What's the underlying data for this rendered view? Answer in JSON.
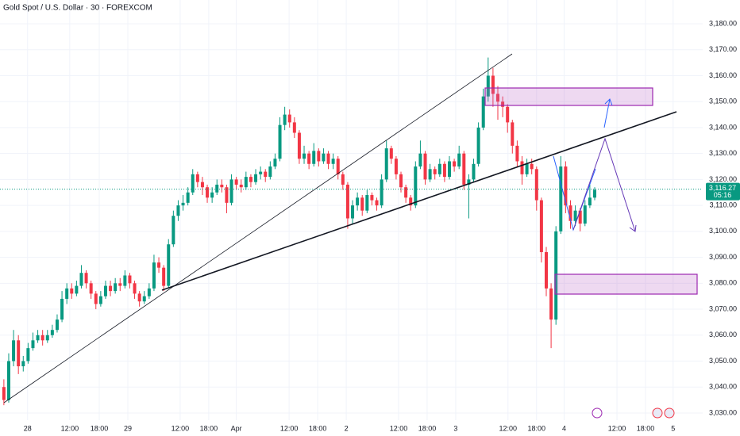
{
  "chart_data": {
    "type": "candlestick",
    "title": "Gold Spot / U.S. Dollar · 30 · FOREXCOM",
    "up_color": "#089981",
    "down_color": "#f23645",
    "grid": true,
    "xlim": [
      -0.8,
      144.3
    ],
    "ylim": [
      3027.24,
      3189.17
    ],
    "xticks": [
      {
        "value": 4.9,
        "label": "28"
      },
      {
        "value": 13.6,
        "label": "12:00"
      },
      {
        "value": 19.7,
        "label": "18:00"
      },
      {
        "value": 25.6,
        "label": "29"
      },
      {
        "value": 36.4,
        "label": "12:00"
      },
      {
        "value": 42.3,
        "label": "18:00"
      },
      {
        "value": 48,
        "label": "Apr"
      },
      {
        "value": 58.9,
        "label": "12:00"
      },
      {
        "value": 64.8,
        "label": "18:00"
      },
      {
        "value": 70.7,
        "label": "2"
      },
      {
        "value": 81.5,
        "label": "12:00"
      },
      {
        "value": 87.4,
        "label": "18:00"
      },
      {
        "value": 93.3,
        "label": "3"
      },
      {
        "value": 104.1,
        "label": "12:00"
      },
      {
        "value": 110,
        "label": "18:00"
      },
      {
        "value": 115.7,
        "label": "4"
      },
      {
        "value": 126.6,
        "label": "12:00"
      },
      {
        "value": 132.5,
        "label": "18:00"
      },
      {
        "value": 138.2,
        "label": "5"
      }
    ],
    "yticks": [
      {
        "value": 3030,
        "label": "3,030.00"
      },
      {
        "value": 3040,
        "label": "3,040.00"
      },
      {
        "value": 3050,
        "label": "3,050.00"
      },
      {
        "value": 3060,
        "label": "3,060.00"
      },
      {
        "value": 3070,
        "label": "3,070.00"
      },
      {
        "value": 3080,
        "label": "3,080.00"
      },
      {
        "value": 3090,
        "label": "3,090.00"
      },
      {
        "value": 3100,
        "label": "3,100.00"
      },
      {
        "value": 3110,
        "label": "3,110.00"
      },
      {
        "value": 3120,
        "label": "3,120.00"
      },
      {
        "value": 3130,
        "label": "3,130.00"
      },
      {
        "value": 3140,
        "label": "3,140.00"
      },
      {
        "value": 3150,
        "label": "3,150.00"
      },
      {
        "value": 3160,
        "label": "3,160.00"
      },
      {
        "value": 3170,
        "label": "3,170.00"
      },
      {
        "value": 3180,
        "label": "3,180.00"
      }
    ],
    "last_price": {
      "value": 3116.27,
      "label": "3,116.27"
    },
    "countdown": "05:16",
    "open": [
      3040,
      3035,
      3050,
      3058,
      3048,
      3050,
      3055,
      3058,
      3060,
      3058,
      3060,
      3062,
      3066,
      3074,
      3078,
      3076,
      3079,
      3084,
      3080,
      3076,
      3072,
      3075,
      3079,
      3077,
      3080,
      3079,
      3083,
      3080,
      3076,
      3073,
      3075,
      3078,
      3088,
      3086,
      3079,
      3095,
      3106,
      3110,
      3111,
      3115,
      3122,
      3119,
      3117,
      3113,
      3115,
      3118,
      3117,
      3111,
      3120,
      3118,
      3117,
      3121,
      3119,
      3122,
      3123,
      3121,
      3125,
      3128,
      3141,
      3145,
      3142,
      3138,
      3128,
      3130,
      3126,
      3131,
      3127,
      3130,
      3126,
      3128,
      3122,
      3118,
      3105,
      3110,
      3113,
      3108,
      3114,
      3112,
      3110,
      3120,
      3132,
      3128,
      3122,
      3117,
      3113,
      3110,
      3125,
      3130,
      3120,
      3124,
      3122,
      3126,
      3121,
      3127,
      3125,
      3130,
      3118,
      3120,
      3126,
      3140,
      3152,
      3160,
      3153,
      3150,
      3148,
      3142,
      3133,
      3127,
      3122,
      3126,
      3124,
      3112,
      3092,
      3078,
      3066,
      3100,
      3125,
      3110,
      3104,
      3108,
      3103,
      3110,
      3113
    ],
    "high": [
      3043,
      3053,
      3062,
      3060,
      3052,
      3057,
      3061,
      3062,
      3062,
      3062,
      3064,
      3068,
      3077,
      3080,
      3080,
      3081,
      3087,
      3085,
      3081,
      3077,
      3077,
      3081,
      3081,
      3082,
      3082,
      3085,
      3084,
      3081,
      3077,
      3077,
      3080,
      3091,
      3090,
      3087,
      3097,
      3108,
      3112,
      3114,
      3117,
      3124,
      3123,
      3121,
      3118,
      3117,
      3120,
      3120,
      3118,
      3122,
      3121,
      3120,
      3123,
      3122,
      3124,
      3125,
      3124,
      3127,
      3130,
      3144,
      3148,
      3147,
      3144,
      3139,
      3133,
      3131,
      3134,
      3132,
      3132,
      3131,
      3130,
      3129,
      3123,
      3119,
      3112,
      3115,
      3114,
      3116,
      3115,
      3113,
      3122,
      3135,
      3133,
      3129,
      3123,
      3118,
      3114,
      3127,
      3135,
      3131,
      3126,
      3125,
      3128,
      3127,
      3129,
      3128,
      3133,
      3131,
      3122,
      3128,
      3142,
      3155,
      3167,
      3163,
      3156,
      3152,
      3149,
      3143,
      3135,
      3129,
      3128,
      3128,
      3125,
      3113,
      3094,
      3080,
      3102,
      3129,
      3127,
      3112,
      3110,
      3109,
      3112,
      3118,
      3117
    ],
    "low": [
      3033,
      3034,
      3048,
      3045,
      3046,
      3049,
      3054,
      3057,
      3056,
      3057,
      3059,
      3061,
      3065,
      3072,
      3074,
      3075,
      3078,
      3078,
      3074,
      3070,
      3071,
      3074,
      3075,
      3076,
      3077,
      3078,
      3078,
      3074,
      3071,
      3072,
      3074,
      3077,
      3084,
      3077,
      3078,
      3094,
      3104,
      3108,
      3110,
      3114,
      3117,
      3114,
      3111,
      3111,
      3114,
      3115,
      3107,
      3110,
      3116,
      3115,
      3116,
      3117,
      3118,
      3120,
      3119,
      3120,
      3124,
      3127,
      3139,
      3140,
      3136,
      3126,
      3126,
      3124,
      3125,
      3125,
      3126,
      3124,
      3124,
      3120,
      3116,
      3101,
      3103,
      3108,
      3106,
      3107,
      3110,
      3108,
      3109,
      3119,
      3126,
      3120,
      3115,
      3111,
      3108,
      3109,
      3124,
      3118,
      3119,
      3120,
      3121,
      3119,
      3120,
      3123,
      3124,
      3116,
      3105,
      3119,
      3125,
      3139,
      3150,
      3148,
      3143,
      3144,
      3138,
      3130,
      3125,
      3118,
      3121,
      3122,
      3108,
      3088,
      3075,
      3055,
      3064,
      3099,
      3107,
      3101,
      3102,
      3100,
      3102,
      3109,
      3112
    ],
    "close": [
      3035,
      3050,
      3058,
      3048,
      3050,
      3055,
      3058,
      3060,
      3058,
      3060,
      3062,
      3066,
      3074,
      3078,
      3076,
      3079,
      3084,
      3080,
      3076,
      3072,
      3075,
      3079,
      3077,
      3080,
      3079,
      3083,
      3080,
      3076,
      3073,
      3075,
      3078,
      3088,
      3086,
      3079,
      3095,
      3106,
      3110,
      3111,
      3115,
      3122,
      3119,
      3117,
      3113,
      3115,
      3118,
      3117,
      3111,
      3120,
      3118,
      3117,
      3121,
      3119,
      3122,
      3123,
      3121,
      3125,
      3128,
      3141,
      3145,
      3142,
      3138,
      3128,
      3130,
      3126,
      3131,
      3127,
      3130,
      3126,
      3128,
      3122,
      3118,
      3105,
      3110,
      3113,
      3108,
      3114,
      3112,
      3110,
      3120,
      3132,
      3128,
      3122,
      3117,
      3113,
      3110,
      3125,
      3130,
      3120,
      3124,
      3122,
      3126,
      3121,
      3127,
      3125,
      3130,
      3118,
      3120,
      3126,
      3140,
      3152,
      3160,
      3153,
      3150,
      3148,
      3142,
      3133,
      3127,
      3122,
      3126,
      3124,
      3112,
      3092,
      3078,
      3066,
      3100,
      3125,
      3110,
      3104,
      3108,
      3103,
      3110,
      3113,
      3116
    ]
  }
}
